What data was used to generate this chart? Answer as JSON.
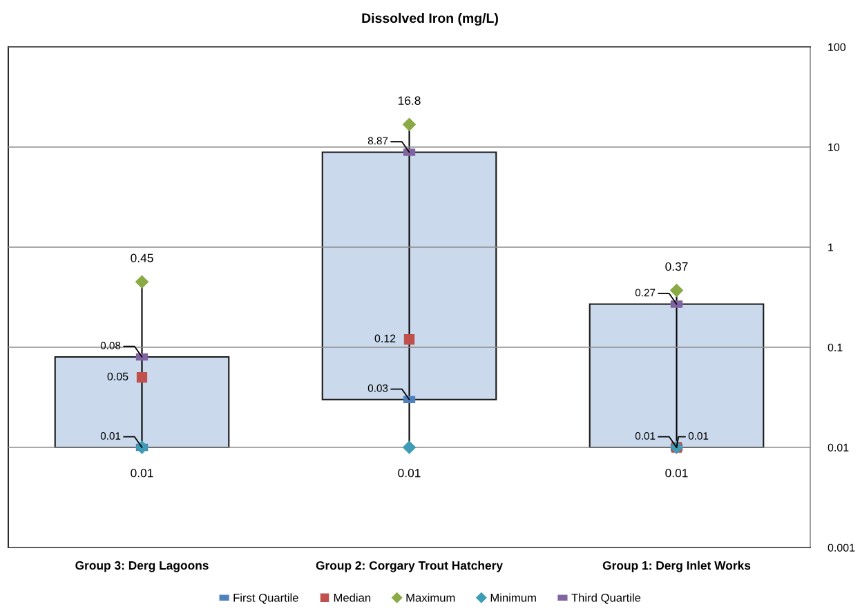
{
  "chart_data": {
    "type": "box",
    "title": "Dissolved Iron (mg/L)",
    "categories": [
      "Group 3: Derg Lagoons",
      "Group 2: Corgary Trout Hatchery",
      "Group 1: Derg Inlet Works"
    ],
    "series": [
      {
        "color": "#c5d5ea",
        "boxes": [
          {
            "low": 0.01,
            "q1": 0.01,
            "q3": 0.08,
            "high": 0.45
          },
          {
            "low": 0.01,
            "q1": 0.03,
            "q3": 8.87,
            "high": 16.8
          },
          {
            "low": 0.01,
            "q1": 0.01,
            "q3": 0.27,
            "high": 0.37
          }
        ]
      },
      {
        "type": "scatter",
        "name": "First Quartile",
        "color": "#4f81bd",
        "marker": "square",
        "x": [
          "Group 3: Derg Lagoons",
          "Group 2: Corgary Trout Hatchery",
          "Group 1: Derg Inlet Works"
        ],
        "values": [
          0.01,
          0.03,
          0.01
        ]
      },
      {
        "type": "scatter",
        "name": "Median",
        "color": "#c0504d",
        "marker": "square",
        "x": [
          "Group 3: Derg Lagoons",
          "Group 2: Corgary Trout Hatchery",
          "Group 1: Derg Inlet Works"
        ],
        "values": [
          0.05,
          0.12,
          0.01
        ]
      },
      {
        "type": "scatter",
        "name": "Maximum",
        "color": "#8aaa45",
        "marker": "diamond",
        "x": [
          "Group 3: Derg Lagoons",
          "Group 2: Corgary Trout Hatchery",
          "Group 1: Derg Inlet Works"
        ],
        "values": [
          0.45,
          16.8,
          0.37
        ]
      },
      {
        "type": "scatter",
        "name": "Minimum",
        "color": "#3f9cb5",
        "marker": "diamond",
        "x": [
          "Group 3: Derg Lagoons",
          "Group 2: Corgary Trout Hatchery",
          "Group 1: Derg Inlet Works"
        ],
        "values": [
          0.01,
          0.01,
          0.01
        ]
      },
      {
        "type": "scatter",
        "name": "Third Quartile",
        "color": "#8064a2",
        "marker": "square",
        "x": [
          "Group 3: Derg Lagoons",
          "Group 2: Corgary Trout Hatchery",
          "Group 1: Derg Inlet Works"
        ],
        "values": [
          0.08,
          8.87,
          0.27
        ]
      }
    ],
    "log": true,
    "ylim": [
      0.001,
      100
    ],
    "yticks": [
      0.001,
      0.01,
      0.1,
      1,
      10,
      100
    ],
    "grid": "y",
    "legend": "bottom",
    "data_labels": true
  }
}
